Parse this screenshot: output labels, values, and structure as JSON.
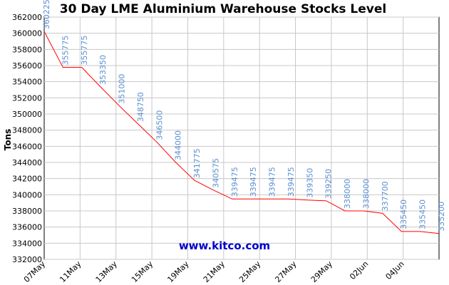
{
  "chart_data": {
    "type": "line",
    "title": "30 Day LME Aluminium Warehouse Stocks Level",
    "ylabel": "Tons",
    "xlabel": "",
    "ylim": [
      332000,
      362000
    ],
    "yticks": [
      332000,
      334000,
      336000,
      338000,
      340000,
      342000,
      344000,
      346000,
      348000,
      350000,
      352000,
      354000,
      356000,
      358000,
      360000,
      362000
    ],
    "xticks": [
      "07May",
      "11May",
      "13May",
      "15May",
      "19May",
      "21May",
      "25May",
      "27May",
      "29May",
      "02Jun",
      "04Jun"
    ],
    "grid": true,
    "watermark": "www.kitco.com",
    "colors": {
      "line": "#ff0000",
      "labels": "#5b8fd0",
      "grid": "#c8c8c8",
      "watermark": "#0000cc"
    },
    "series": [
      {
        "values": [
          360225,
          355775,
          355775,
          353350,
          351000,
          348750,
          346500,
          344000,
          341775,
          340575,
          339475,
          339475,
          339475,
          339475,
          339350,
          339250,
          338000,
          338000,
          337700,
          335450,
          335450,
          335200
        ],
        "labels": [
          "360225",
          "355775",
          "355775",
          "353350",
          "351000",
          "348750",
          "346500",
          "344000",
          "341775",
          "340575",
          "339475",
          "339475",
          "339475",
          "339475",
          "339350",
          "339250",
          "338000",
          "338000",
          "337700",
          "335450",
          "335450",
          "335200"
        ]
      }
    ]
  }
}
